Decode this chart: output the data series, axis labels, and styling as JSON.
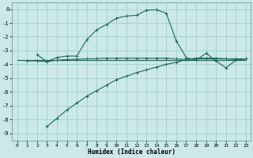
{
  "xlabel": "Humidex (Indice chaleur)",
  "bg_color": "#cce8e8",
  "grid_color": "#99cccc",
  "line_color": "#1a6b5a",
  "xlim": [
    -0.5,
    23.5
  ],
  "ylim": [
    -9.5,
    0.5
  ],
  "yticks": [
    0,
    -1,
    -2,
    -3,
    -4,
    -5,
    -6,
    -7,
    -8,
    -9
  ],
  "xticks": [
    0,
    1,
    2,
    3,
    4,
    5,
    6,
    7,
    8,
    9,
    10,
    11,
    12,
    13,
    14,
    15,
    16,
    17,
    18,
    19,
    20,
    21,
    22,
    23
  ],
  "line1_x": [
    2,
    3,
    4,
    5,
    6,
    7,
    8,
    9,
    10,
    11,
    12,
    13,
    14,
    15,
    16,
    17,
    18,
    19,
    20,
    21,
    22,
    23
  ],
  "line1_y": [
    -3.3,
    -3.8,
    -3.5,
    -3.4,
    -3.4,
    -2.2,
    -1.5,
    -1.1,
    -0.65,
    -0.5,
    -0.45,
    -0.08,
    -0.05,
    -0.3,
    -2.3,
    -3.5,
    -3.7,
    -3.2,
    -3.75,
    -4.25,
    -3.7,
    -3.6
  ],
  "line2_x": [
    0,
    23
  ],
  "line2_y": [
    -3.7,
    -3.7
  ],
  "line3_x": [
    3,
    4,
    5,
    6,
    7,
    8,
    9,
    10,
    11,
    12,
    13,
    14,
    15,
    16,
    17,
    18,
    19,
    20,
    21,
    22,
    23
  ],
  "line3_y": [
    -8.5,
    -7.9,
    -7.3,
    -6.8,
    -6.3,
    -5.9,
    -5.5,
    -5.1,
    -4.85,
    -4.6,
    -4.4,
    -4.2,
    -4.0,
    -3.85,
    -3.65,
    -3.55,
    -3.55,
    -3.55,
    -3.6,
    -3.65,
    -3.6
  ],
  "line4_x": [
    1,
    2,
    3,
    4,
    5,
    6,
    7,
    8,
    9,
    10,
    11,
    12,
    13,
    14,
    15,
    16,
    17,
    18,
    19,
    20,
    21,
    22,
    23
  ],
  "line4_y": [
    -3.75,
    -3.75,
    -3.8,
    -3.7,
    -3.65,
    -3.62,
    -3.6,
    -3.58,
    -3.55,
    -3.55,
    -3.55,
    -3.55,
    -3.55,
    -3.55,
    -3.55,
    -3.6,
    -3.65,
    -3.6,
    -3.6,
    -3.6,
    -3.6,
    -3.6,
    -3.6
  ]
}
